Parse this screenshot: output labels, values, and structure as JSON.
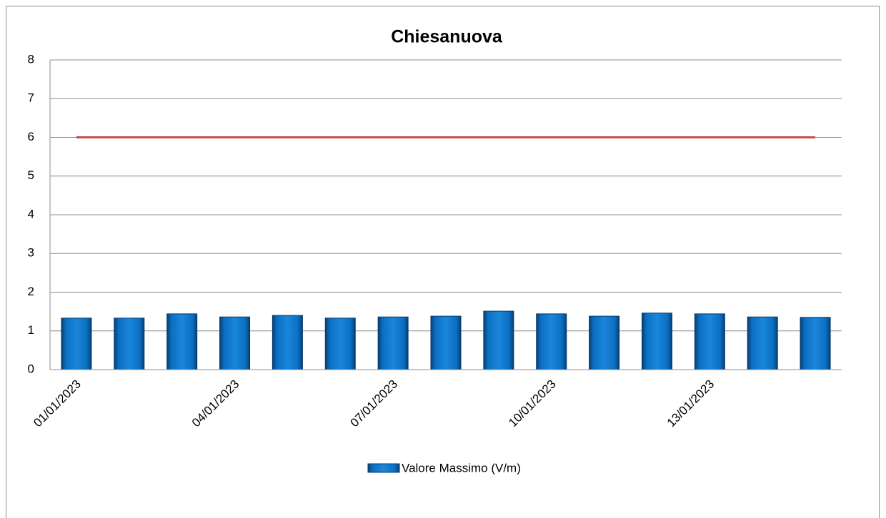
{
  "chart_data": {
    "type": "bar",
    "title": "Chiesanuova",
    "categories": [
      "01/01/2023",
      null,
      null,
      "04/01/2023",
      null,
      null,
      "07/01/2023",
      null,
      null,
      "10/01/2023",
      null,
      null,
      "13/01/2023",
      null,
      null
    ],
    "series": [
      {
        "name": "Valore Massimo (V/m)",
        "color": "#0b6fc2",
        "values": [
          1.33,
          1.33,
          1.44,
          1.36,
          1.4,
          1.33,
          1.36,
          1.38,
          1.51,
          1.44,
          1.38,
          1.46,
          1.44,
          1.36,
          1.35
        ]
      },
      {
        "type": "line",
        "color": "#c0504d",
        "values": [
          6,
          6,
          6,
          6,
          6,
          6,
          6,
          6,
          6,
          6,
          6,
          6,
          6,
          6,
          6
        ]
      }
    ],
    "ylim": [
      0,
      8
    ],
    "yticks": [
      0,
      1,
      2,
      3,
      4,
      5,
      6,
      7,
      8
    ],
    "grid": true,
    "legend": "bottom"
  }
}
